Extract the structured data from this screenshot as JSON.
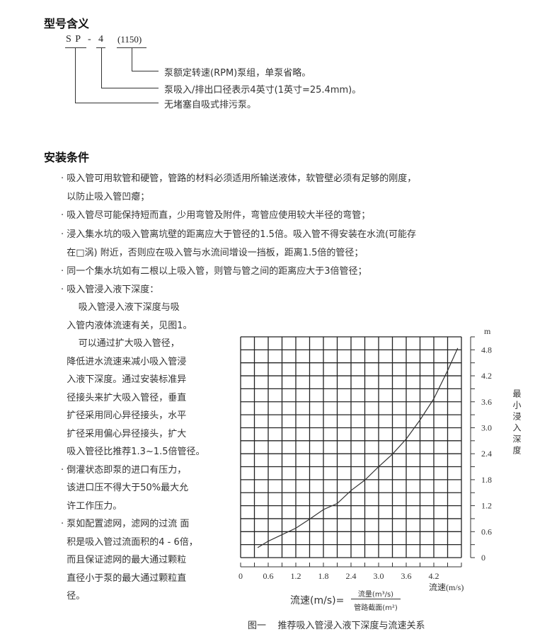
{
  "model_section": {
    "title": "型号含义",
    "code_sp": "S P",
    "code_dash": "-",
    "code_size": "4",
    "code_rpm": "(1150)",
    "desc_rpm": "泵额定转速(RPM)泵组，单泵省略。",
    "desc_size": "泵吸入/排出口径表示4英寸(1英寸=25.4mm)。",
    "desc_sp": "无堵塞自吸式排污泵。"
  },
  "install_section": {
    "title": "安装条件",
    "wide_lines": [
      "· 吸入管可用软管和硬管，管路的材料必须适用所输送液体，软管壁必须有足够的刚度，",
      "  以防止吸入管凹瘪；",
      "· 吸入管尽可能保持短而直，少用弯管及附件，弯管应使用较大半径的弯管；",
      "· 浸入集水坑的吸入管离坑壁的距离应大于管径的1.5倍。吸入管不得安装在水流(可能存",
      "  在□涡) 附近，否则应在吸入管与水流间增设一挡板，距离1.5倍的管径；",
      "· 同一个集水坑如有二根以上吸入管，则管与管之间的距离应大于3倍管径；",
      "· 吸入管浸入液下深度："
    ],
    "narrow_lines": [
      "      吸入管浸入液下深度与吸",
      "  入管内液体流速有关，见图1。",
      "      可以通过扩大吸入管径，",
      "  降低进水流速来减小吸入管浸",
      "  入液下深度。通过安装标准异",
      "  径接头来扩大吸入管径，垂直",
      "  扩径采用同心异径接头，水平",
      "  扩径采用偏心异径接头，扩大",
      "  吸入管径比推荐1.3~1.5倍管径。",
      "· 倒灌状态即泵的进口有压力，",
      "  该进口压不得大于50%最大允",
      "  许工作压力。",
      "· 泵如配置滤网，滤网的过流 面",
      "  积是吸入管过流面积的4 - 6倍，",
      "  而且保证滤网的最大通过颗粒",
      "  直径小于泵的最大通过颗粒直",
      "  径。"
    ]
  },
  "formula": {
    "lhs": "流速(m/s)=",
    "numerator": "流量(m³/s)",
    "denominator": "管路截面(m²)"
  },
  "chart_data": {
    "type": "line",
    "title": "图一    推荐吸入管浸入液下深度与流速关系",
    "xlabel": "流速(m/s)",
    "ylabel": "最小浸入深度",
    "yunit": "m",
    "xlim": [
      0,
      4.8
    ],
    "ylim": [
      0,
      5.1
    ],
    "xticks": [
      "0",
      "0.6",
      "1.2",
      "1.8",
      "2.4",
      "3.0",
      "3.6",
      "4.2"
    ],
    "yticks": [
      "0",
      "0.6",
      "1.2",
      "1.8",
      "2.4",
      "3.0",
      "3.6",
      "4.2",
      "4.8"
    ],
    "grid": true,
    "grid_step": 0.3,
    "line_color": "#333333",
    "x": [
      0.37,
      0.6,
      0.9,
      1.2,
      1.5,
      1.8,
      2.1,
      2.4,
      2.7,
      3.0,
      3.3,
      3.6,
      3.9,
      4.2,
      4.5,
      4.72
    ],
    "y": [
      0.23,
      0.38,
      0.53,
      0.68,
      0.89,
      1.11,
      1.25,
      1.55,
      1.79,
      2.1,
      2.39,
      2.74,
      3.18,
      3.67,
      4.32,
      4.84
    ]
  }
}
